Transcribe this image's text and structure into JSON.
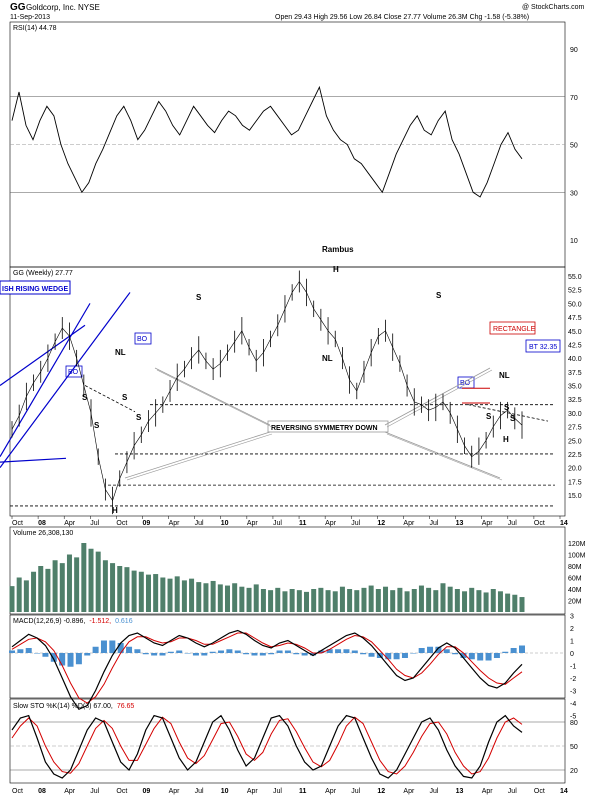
{
  "header": {
    "ticker": "GG",
    "company": "Goldcorp, Inc. NYSE",
    "date": "11-Sep-2013",
    "stats": "Open 29.43  High 29.56  Low 26.84  Close 27.77  Volume 26.3M  Chg -1.58 (-5.38%)",
    "watermark": "@ StockCharts.com"
  },
  "colors": {
    "price": "#000000",
    "volume": "#4f7f6a",
    "macd_hist": "#4a90d0",
    "signal": "#d40000",
    "pattern": "#0000cc",
    "grey_line": "#999999"
  },
  "x_axis": {
    "labels": [
      "Oct",
      "08",
      "Apr",
      "Jul",
      "Oct",
      "09",
      "Apr",
      "Jul",
      "10",
      "Apr",
      "Jul",
      "11",
      "Apr",
      "Jul",
      "12",
      "Apr",
      "Jul",
      "13",
      "Apr",
      "Jul",
      "Oct",
      "14"
    ]
  },
  "rsi": {
    "label": "RSI(14) 44.78",
    "ticks": [
      "90",
      "70",
      "50",
      "30",
      "10"
    ],
    "series_name": "RSI(14)",
    "annotation": "Rambus"
  },
  "price": {
    "label": "GG (Weekly) 27.77",
    "ticks": [
      "55.0",
      "52.5",
      "50.0",
      "47.5",
      "45.0",
      "42.5",
      "40.0",
      "37.5",
      "35.0",
      "32.5",
      "30.0",
      "27.5",
      "25.0",
      "22.5",
      "20.0",
      "17.5",
      "15.0"
    ],
    "annotations": {
      "wedge": "ISH RISING WEDGE",
      "bo1": "BO",
      "bo2": "BO",
      "bo3": "BO",
      "nl1": "NL",
      "nl2": "NL",
      "nl3": "NL",
      "s_marks": [
        "S",
        "S",
        "S",
        "S",
        "S",
        "S",
        "S",
        "S",
        "S"
      ],
      "h_top": "H",
      "h_low": "H",
      "h_right": "H",
      "rectangle": "RECTANGLE",
      "bt": "BT 32.35",
      "reversing": "REVERSING SYMMETRY DOWN"
    }
  },
  "volume": {
    "label": "Volume 26,308,130",
    "ticks": [
      "120M",
      "100M",
      "80M",
      "60M",
      "40M",
      "20M"
    ]
  },
  "macd": {
    "label": "MACD(12,26,9) -0.896, -1.512, 0.616",
    "label_parts": [
      "MACD(12,26,9) -0.896,",
      "-1.512,",
      "0.616"
    ],
    "ticks": [
      "3",
      "2",
      "1",
      "0",
      "-1",
      "-2",
      "-3",
      "-4",
      "-5"
    ]
  },
  "sto": {
    "label": "Slow STO %K(14) %D(3) 67.00, 76.65",
    "label_parts": [
      "Slow STO %K(14) %D(3) 67.00,",
      "76.65"
    ],
    "ticks": [
      "80",
      "50",
      "20"
    ]
  },
  "chart_data": [
    {
      "type": "line",
      "title": "RSI(14) 44.78",
      "ylim": [
        0,
        100
      ],
      "values": [
        60,
        72,
        58,
        52,
        60,
        66,
        62,
        50,
        42,
        36,
        30,
        34,
        42,
        48,
        55,
        62,
        66,
        60,
        52,
        56,
        62,
        68,
        64,
        58,
        54,
        60,
        66,
        62,
        58,
        55,
        60,
        64,
        62,
        58,
        56,
        60,
        64,
        66,
        62,
        58,
        54,
        56,
        62,
        68,
        74,
        62,
        56,
        52,
        50,
        44,
        42,
        38,
        34,
        30,
        38,
        46,
        52,
        58,
        62,
        56,
        54,
        60,
        64,
        52,
        46,
        38,
        30,
        28,
        34,
        42,
        50,
        55,
        48,
        44
      ],
      "guides": [
        70,
        50,
        30
      ]
    },
    {
      "type": "line",
      "title": "GG (Weekly) 27.77",
      "xlabel": "",
      "ylabel": "",
      "ylim": [
        13,
        56
      ],
      "values": [
        27.0,
        29.5,
        33.0,
        35.5,
        37.5,
        40.0,
        43.0,
        45.5,
        44.0,
        40.0,
        35.0,
        30.0,
        22.0,
        16.0,
        14.0,
        18.0,
        21.0,
        24.0,
        26.0,
        28.5,
        30.0,
        31.5,
        34.0,
        36.5,
        38.0,
        40.0,
        41.5,
        39.5,
        38.0,
        39.0,
        41.0,
        43.0,
        45.0,
        42.0,
        39.5,
        41.0,
        43.5,
        46.0,
        49.0,
        52.0,
        54.0,
        52.0,
        49.0,
        47.0,
        45.0,
        43.5,
        40.0,
        36.0,
        34.0,
        37.5,
        41.0,
        44.0,
        45.0,
        42.0,
        39.0,
        35.0,
        32.0,
        31.5,
        30.5,
        31.0,
        32.0,
        30.0,
        27.0,
        24.0,
        22.0,
        23.0,
        25.0,
        27.5,
        29.5,
        30.5,
        29.0,
        27.77
      ],
      "levels": {
        "neckline": 31.5,
        "support_1": 22.5,
        "support_2": 16.8,
        "support_3": 13.0,
        "rectangle_top": 34.5,
        "bt": 32.35
      }
    },
    {
      "type": "bar",
      "title": "Volume 26,308,130",
      "ylabel": "",
      "ylim": [
        0,
        130
      ],
      "values": [
        45,
        60,
        55,
        70,
        80,
        75,
        90,
        85,
        100,
        95,
        120,
        110,
        105,
        90,
        85,
        80,
        78,
        72,
        70,
        65,
        66,
        60,
        58,
        62,
        55,
        58,
        52,
        50,
        54,
        48,
        46,
        50,
        44,
        42,
        48,
        40,
        38,
        42,
        36,
        40,
        38,
        35,
        40,
        42,
        38,
        36,
        44,
        40,
        38,
        42,
        46,
        40,
        44,
        38,
        42,
        36,
        40,
        46,
        42,
        38,
        50,
        44,
        40,
        36,
        42,
        38,
        34,
        40,
        36,
        32,
        30,
        26
      ]
    },
    {
      "type": "line",
      "title": "MACD(12,26,9) -0.896, -1.512, 0.616",
      "ylim": [
        -5,
        3
      ],
      "series": [
        {
          "name": "MACD",
          "values": [
            0.5,
            1.0,
            1.5,
            1.2,
            0.6,
            -0.5,
            -2.0,
            -3.5,
            -4.5,
            -4.2,
            -3.0,
            -1.5,
            -0.2,
            0.8,
            1.4,
            1.6,
            1.2,
            0.8,
            0.6,
            1.0,
            1.4,
            1.2,
            0.8,
            0.5,
            0.8,
            1.2,
            1.6,
            1.8,
            1.5,
            1.0,
            0.6,
            0.4,
            0.8,
            1.0,
            0.6,
            0.2,
            -0.2,
            0.2,
            0.6,
            1.0,
            1.4,
            1.6,
            1.2,
            0.6,
            -0.2,
            -1.0,
            -1.8,
            -2.2,
            -2.0,
            -1.2,
            -0.4,
            0.4,
            0.8,
            0.4,
            -0.4,
            -1.2,
            -2.0,
            -2.6,
            -2.8,
            -2.4,
            -1.6,
            -0.9
          ]
        },
        {
          "name": "Signal",
          "values": [
            0.3,
            0.7,
            1.1,
            1.2,
            0.9,
            0.2,
            -1.0,
            -2.4,
            -3.6,
            -4.0,
            -3.5,
            -2.5,
            -1.2,
            0.0,
            0.9,
            1.3,
            1.3,
            1.0,
            0.8,
            0.9,
            1.2,
            1.2,
            1.0,
            0.7,
            0.7,
            1.0,
            1.3,
            1.6,
            1.6,
            1.2,
            0.8,
            0.5,
            0.6,
            0.8,
            0.7,
            0.4,
            0.0,
            0.0,
            0.3,
            0.7,
            1.1,
            1.4,
            1.3,
            0.9,
            0.2,
            -0.5,
            -1.3,
            -1.8,
            -2.0,
            -1.6,
            -0.9,
            -0.1,
            0.5,
            0.5,
            0.0,
            -0.7,
            -1.4,
            -2.0,
            -2.4,
            -2.5,
            -2.0,
            -1.5
          ]
        }
      ]
    },
    {
      "type": "line",
      "title": "Slow STO %K(14) %D(3) 67.00, 76.65",
      "ylim": [
        0,
        100
      ],
      "series": [
        {
          "name": "%K",
          "values": [
            70,
            85,
            88,
            60,
            30,
            15,
            10,
            20,
            45,
            70,
            85,
            80,
            55,
            30,
            20,
            40,
            70,
            88,
            85,
            60,
            35,
            20,
            30,
            55,
            80,
            88,
            70,
            45,
            25,
            35,
            60,
            85,
            88,
            75,
            50,
            30,
            20,
            25,
            50,
            75,
            88,
            85,
            60,
            35,
            15,
            10,
            20,
            40,
            60,
            80,
            85,
            70,
            45,
            25,
            12,
            10,
            25,
            55,
            80,
            88,
            75,
            67
          ]
        },
        {
          "name": "%D",
          "values": [
            60,
            75,
            85,
            75,
            50,
            30,
            18,
            16,
            28,
            50,
            72,
            82,
            72,
            50,
            32,
            32,
            52,
            72,
            86,
            78,
            55,
            35,
            28,
            38,
            58,
            78,
            80,
            62,
            40,
            32,
            42,
            65,
            82,
            84,
            68,
            48,
            30,
            24,
            32,
            52,
            75,
            86,
            78,
            55,
            32,
            18,
            15,
            25,
            42,
            62,
            78,
            80,
            65,
            42,
            25,
            15,
            18,
            35,
            60,
            80,
            85,
            77
          ]
        }
      ],
      "guides": [
        80,
        50,
        20
      ]
    }
  ]
}
